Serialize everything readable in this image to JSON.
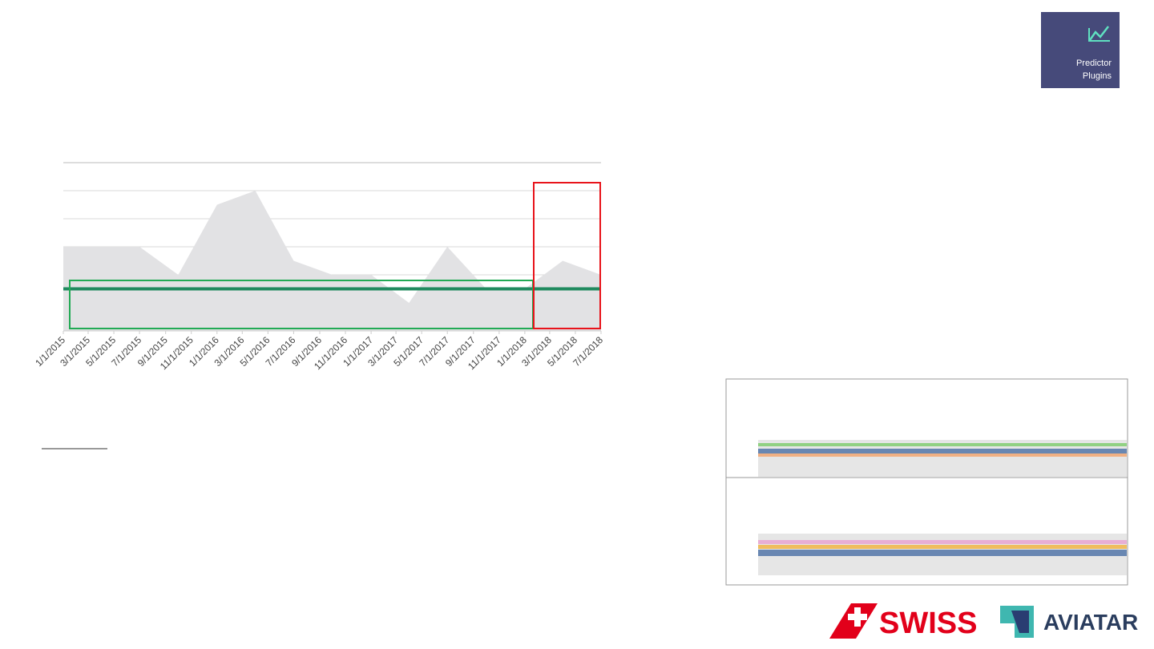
{
  "button": {
    "lines": [
      "Predictor",
      "Plugins"
    ]
  },
  "logos": {
    "swiss": "SWISS",
    "aviatar": "AVIATAR"
  },
  "chart_data": {
    "type": "area",
    "x": [
      "1/1/2015",
      "4/1/2015",
      "7/1/2015",
      "10/1/2015",
      "1/1/2016",
      "4/1/2016",
      "7/1/2016",
      "10/1/2016",
      "1/1/2017",
      "4/1/2017",
      "7/1/2017",
      "10/1/2017",
      "1/1/2018",
      "4/1/2018",
      "7/1/2018"
    ],
    "values": [
      3,
      3,
      3,
      2,
      4.5,
      5,
      2.5,
      2,
      2,
      1,
      3,
      1.5,
      1.5,
      2.5,
      2
    ],
    "color": "#e2e2e4",
    "threshold": 1.5,
    "threshold_color": "#1f8a5e",
    "xticks": [
      "1/1/2015",
      "3/1/2015",
      "5/1/2015",
      "7/1/2015",
      "9/1/2015",
      "11/1/2015",
      "1/1/2016",
      "3/1/2016",
      "5/1/2016",
      "7/1/2016",
      "9/1/2016",
      "11/1/2016",
      "1/1/2017",
      "3/1/2017",
      "5/1/2017",
      "7/1/2017",
      "9/1/2017",
      "11/1/2017",
      "1/1/2018",
      "3/1/2018",
      "5/1/2018",
      "7/1/2018"
    ],
    "ylim": [
      0,
      6
    ],
    "yticks": [
      2,
      3,
      4,
      5,
      6
    ],
    "grid": true
  }
}
